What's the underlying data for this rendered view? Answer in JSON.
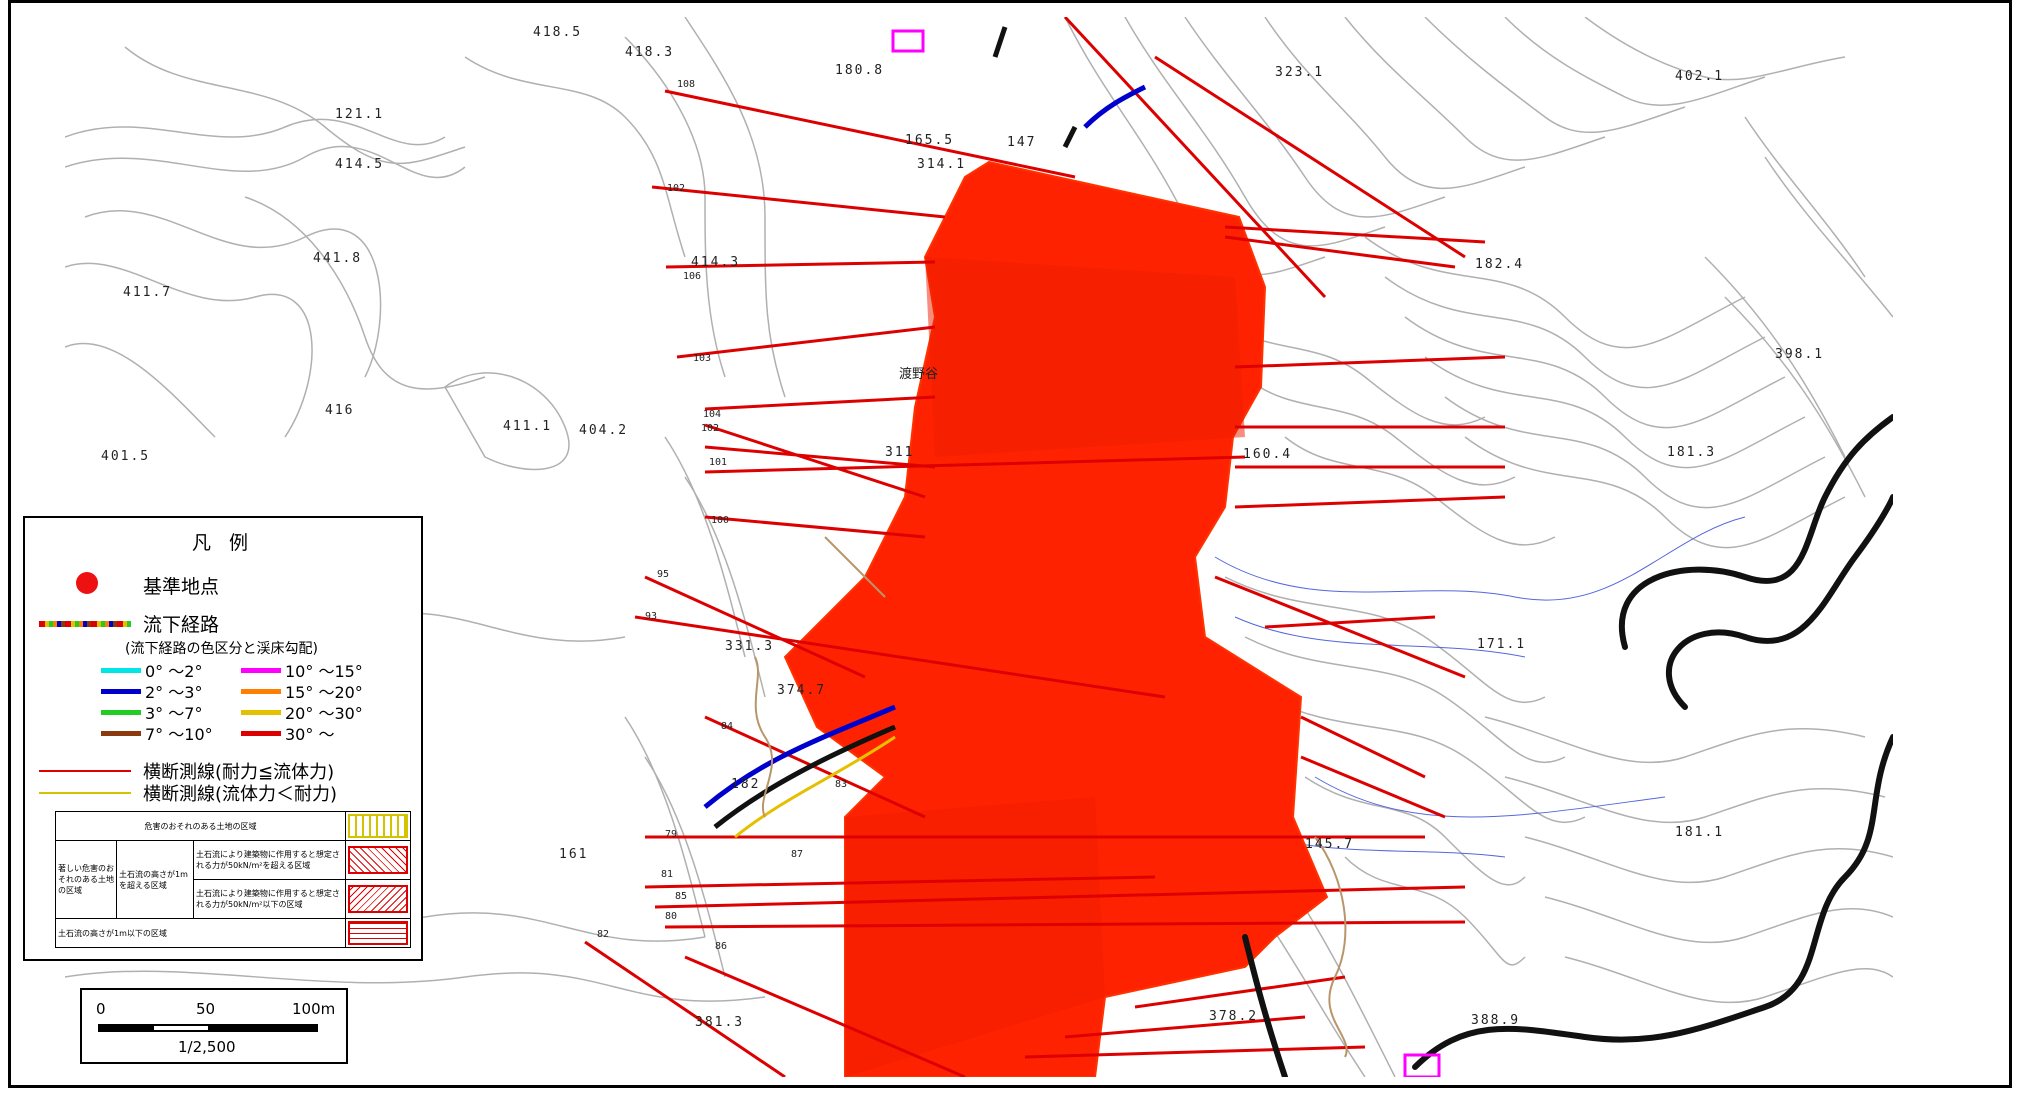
{
  "map": {
    "elevations": [
      "418.5",
      "418.3",
      "180.8",
      "323.1",
      "402.1",
      "121.1",
      "414.5",
      "165.5",
      "147",
      "314.1",
      "441.8",
      "414.3",
      "411.7",
      "182.4",
      "416",
      "411.1",
      "404.2",
      "401.5",
      "311",
      "160.4",
      "181.3",
      "331.3",
      "171.1",
      "374.7",
      "182",
      "161",
      "145.7",
      "181.1",
      "381.3",
      "378.2",
      "388.9",
      "398.1"
    ],
    "cross_section_ids": [
      "108",
      "102",
      "106",
      "103",
      "104",
      "102",
      "101",
      "100",
      "95",
      "93",
      "84",
      "83",
      "81",
      "85",
      "80",
      "82",
      "79",
      "86",
      "87"
    ],
    "place_name": "渡野谷"
  },
  "legend": {
    "title": "凡 例",
    "reference_point": "基準地点",
    "flow_path": "流下経路",
    "flow_path_note": "(流下経路の色区分と渓床勾配)",
    "gradient_classes": [
      {
        "label": "0° ～2°",
        "color": "#00e5e5"
      },
      {
        "label": "10° ～15°",
        "color": "#ff00ff"
      },
      {
        "label": "2° ～3°",
        "color": "#0000cc"
      },
      {
        "label": "15° ～20°",
        "color": "#ff8000"
      },
      {
        "label": "3° ～7°",
        "color": "#22cc22"
      },
      {
        "label": "20° ～30°",
        "color": "#e5c000"
      },
      {
        "label": "7° ～10°",
        "color": "#8b3a0f"
      },
      {
        "label": "30° ～",
        "color": "#dd0000"
      }
    ],
    "cross_line_red": "横断測線(耐力≦流体力)",
    "cross_line_yellow": "横断測線(流体力＜耐力)",
    "table": {
      "danger_zone": "危害のおそれのある土地の区域",
      "severe_zone": "著しい危害のおそれのある土地の区域",
      "over_1m": "土石流の高さが1mを超える区域",
      "force_over": "土石流により建築物に作用すると想定される力が50kN/m²を超える区域",
      "force_under": "土石流により建築物に作用すると想定される力が50kN/m²以下の区域",
      "under_1m": "土石流の高さが1m以下の区域"
    }
  },
  "scale": {
    "label_0": "0",
    "label_50": "50",
    "label_100": "100m",
    "ratio": "1/2,500"
  },
  "colors": {
    "hazard_fill": "#ff2200",
    "cross_line": "#dd0000",
    "road": "#000000"
  }
}
